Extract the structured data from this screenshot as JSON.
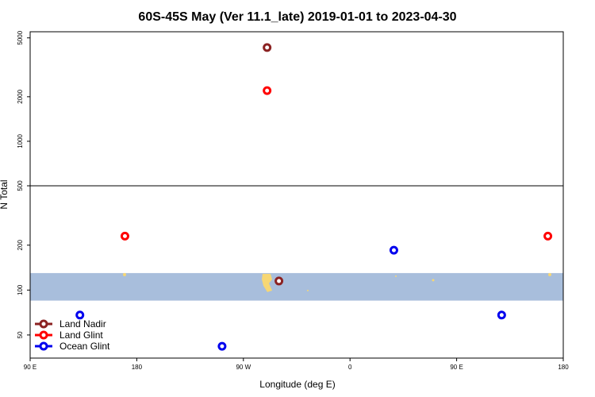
{
  "chart_data": {
    "type": "scatter",
    "title": "60S-45S May (Ver 11.1_late)   2019-01-01 to 2023-04-30",
    "xlabel": "Longitude (deg E)",
    "ylabel": "N Total",
    "x_ticks": [
      {
        "value": 90,
        "label": "90 E"
      },
      {
        "value": 180,
        "label": "180"
      },
      {
        "value": 270,
        "label": "90 W"
      },
      {
        "value": 360,
        "label": "0"
      },
      {
        "value": 450,
        "label": "90 E"
      },
      {
        "value": 540,
        "label": "180"
      }
    ],
    "xlim": [
      90,
      540
    ],
    "bottom_panel": {
      "scale": "log",
      "ylim": [
        35,
        500
      ],
      "y_ticks": [
        50,
        100,
        200,
        500
      ]
    },
    "top_panel": {
      "scale": "log",
      "ylim": [
        500,
        5500
      ],
      "y_ticks": [
        500,
        1000,
        2000,
        5000
      ]
    },
    "background_band": {
      "y_from": 85,
      "y_to": 130,
      "color": "#a8bedc"
    },
    "land_color": "#f7d774",
    "series": [
      {
        "name": "Land Nadir",
        "color": "#8b2222",
        "points": [
          {
            "x": 290,
            "y": 4300
          },
          {
            "x": 300,
            "y": 115
          }
        ]
      },
      {
        "name": "Land Glint",
        "color": "#ff0000",
        "points": [
          {
            "x": 170,
            "y": 230
          },
          {
            "x": 290,
            "y": 2200
          },
          {
            "x": 527,
            "y": 230
          }
        ]
      },
      {
        "name": "Ocean Glint",
        "color": "#0000ee",
        "points": [
          {
            "x": 132,
            "y": 68
          },
          {
            "x": 252,
            "y": 42
          },
          {
            "x": 397,
            "y": 185
          },
          {
            "x": 488,
            "y": 68
          }
        ]
      }
    ],
    "legend": {
      "placement": "bottom-left"
    },
    "grid": false
  }
}
